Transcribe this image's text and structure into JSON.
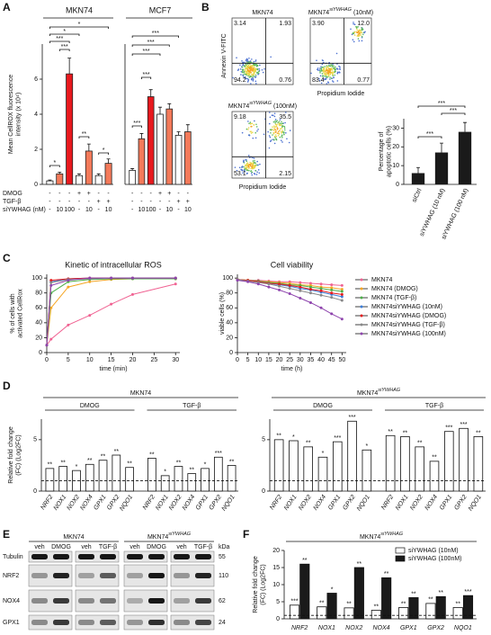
{
  "chart_data": [
    {
      "panel": "A",
      "type": "bar",
      "title": "MKN74",
      "ylabel": [
        "Mean CellROX fluorescence",
        "intensity (x 10⁴)"
      ],
      "ylim": [
        0,
        8
      ],
      "yticks": [
        0,
        2,
        4,
        6
      ],
      "values": [
        0.2,
        0.6,
        6.3,
        0.5,
        1.9,
        0.5,
        1.2
      ],
      "errors": [
        0.05,
        0.1,
        0.9,
        0.1,
        0.4,
        0.1,
        0.25
      ],
      "colors": [
        "#ffffff",
        "#f47a5a",
        "#e8191e",
        "#ffffff",
        "#f47a5a",
        "#ffffff",
        "#f47a5a"
      ],
      "condition_labels": [
        "DMOG",
        "TGF-β",
        "siYWHAG (nM)"
      ],
      "conditions": [
        [
          "-",
          "-",
          "-",
          "+",
          "+",
          "-",
          "-"
        ],
        [
          "-",
          "-",
          "-",
          "-",
          "-",
          "+",
          "+"
        ],
        [
          "-",
          "10",
          "100",
          "-",
          "10",
          "-",
          "10"
        ]
      ],
      "significance": [
        "*",
        "*",
        "***",
        "***",
        "*",
        "**",
        "*"
      ]
    },
    {
      "type": "bar",
      "title": "MCF7",
      "ylim": [
        0,
        8
      ],
      "values": [
        0.8,
        2.6,
        5.0,
        4.0,
        4.3,
        2.8,
        3.0
      ],
      "errors": [
        0.1,
        0.3,
        0.4,
        0.4,
        0.3,
        0.2,
        0.4
      ],
      "colors": [
        "#ffffff",
        "#f47a5a",
        "#e8191e",
        "#ffffff",
        "#f47a5a",
        "#ffffff",
        "#f47a5a"
      ],
      "conditions": [
        [
          "-",
          "-",
          "-",
          "+",
          "+",
          "-",
          "-"
        ],
        [
          "-",
          "-",
          "-",
          "-",
          "-",
          "+",
          "+"
        ],
        [
          "-",
          "10",
          "100",
          "-",
          "10",
          "-",
          "10"
        ]
      ],
      "significance": [
        "***",
        "***",
        "***",
        "***",
        "***"
      ]
    },
    {
      "type": "bar",
      "ylabel": [
        "Percentage of",
        "apoptotic cells (%)"
      ],
      "categories": [
        "siCtrl",
        "siYWHAG (10 nM)",
        "siYWHAG (100 nM)"
      ],
      "values": [
        6,
        17,
        28
      ],
      "errors": [
        3,
        5,
        5
      ],
      "color": "#1a1a1a",
      "ylim": [
        0,
        35
      ],
      "yticks": [
        0,
        10,
        20,
        30
      ],
      "significance": [
        "***",
        "***",
        "***"
      ]
    },
    {
      "panel": "C",
      "type": "line",
      "title": "Kinetic of intracellular ROS",
      "xlabel": "time (min)",
      "ylabel": [
        "% of cells with",
        "activated CellRox"
      ],
      "x": [
        0,
        1,
        5,
        10,
        15,
        20,
        30
      ],
      "xlim": [
        0,
        31
      ],
      "xticks": [
        0,
        5,
        10,
        15,
        20,
        25,
        30
      ],
      "ylim": [
        0,
        105
      ],
      "yticks": [
        0,
        20,
        40,
        60,
        80,
        100
      ],
      "series": [
        {
          "color": "#f06292",
          "values": [
            10,
            18,
            37,
            50,
            65,
            78,
            92
          ]
        },
        {
          "color": "#f5a623",
          "values": [
            10,
            60,
            88,
            95,
            98,
            99,
            99
          ]
        },
        {
          "color": "#4daf4a",
          "values": [
            10,
            80,
            95,
            98,
            99,
            99,
            99
          ]
        },
        {
          "color": "#3b7dd8",
          "values": [
            10,
            95,
            99,
            100,
            100,
            100,
            100
          ]
        },
        {
          "color": "#e41a1c",
          "values": [
            10,
            97,
            99,
            100,
            100,
            100,
            100
          ]
        },
        {
          "color": "#888888",
          "values": [
            10,
            94,
            98,
            99,
            100,
            100,
            100
          ]
        },
        {
          "color": "#8e44ad",
          "values": [
            10,
            90,
            97,
            100,
            100,
            100,
            100
          ]
        }
      ]
    },
    {
      "type": "line",
      "title": "Cell viability",
      "xlabel": "time (h)",
      "ylabel": [
        "viable cells (%)"
      ],
      "x": [
        0,
        5,
        10,
        15,
        20,
        25,
        30,
        35,
        40,
        45,
        50
      ],
      "xlim": [
        0,
        52
      ],
      "xticks": [
        0,
        5,
        10,
        15,
        20,
        25,
        30,
        35,
        40,
        45,
        50
      ],
      "ylim": [
        0,
        105
      ],
      "yticks": [
        0,
        20,
        40,
        60,
        80,
        100
      ],
      "legend": "right",
      "series": [
        {
          "name": "MKN74",
          "color": "#f06292",
          "values": [
            98,
            97,
            97,
            96,
            95,
            95,
            94,
            93,
            92,
            91,
            90
          ]
        },
        {
          "name": "MKN74 (DMOG)",
          "color": "#f5a623",
          "values": [
            98,
            97,
            96,
            95,
            94,
            93,
            91,
            90,
            88,
            87,
            85
          ]
        },
        {
          "name": "MKN74 (TGF-β)",
          "color": "#4daf4a",
          "values": [
            98,
            97,
            96,
            94,
            93,
            91,
            90,
            88,
            86,
            84,
            82
          ]
        },
        {
          "name": "MKN74siYWHAG (10nM)",
          "color": "#3b7dd8",
          "values": [
            98,
            96,
            95,
            93,
            91,
            89,
            86,
            84,
            81,
            78,
            75
          ]
        },
        {
          "name": "MKN74siYWHAG (DMOG)",
          "color": "#e41a1c",
          "values": [
            98,
            97,
            95,
            93,
            92,
            90,
            88,
            85,
            83,
            80,
            78
          ]
        },
        {
          "name": "MKN74siYWHAG (TGF-β)",
          "color": "#888888",
          "values": [
            98,
            96,
            94,
            92,
            89,
            86,
            83,
            80,
            77,
            74,
            70
          ]
        },
        {
          "name": "MKN74siYWHAG (100nM)",
          "color": "#8e44ad",
          "values": [
            97,
            95,
            92,
            88,
            84,
            79,
            73,
            67,
            60,
            52,
            45
          ]
        }
      ]
    },
    {
      "panel": "D",
      "type": "grouped_bar",
      "title": "MKN74",
      "ylabel": [
        "Relative fold change",
        "(FC) (Log2FC)"
      ],
      "categories": [
        "NRF2",
        "NOX1",
        "NOX2",
        "NOX4",
        "GPX1",
        "GPX2",
        "NQO1"
      ],
      "color": "#ffffff",
      "ylim": [
        0,
        7
      ],
      "yticks": [
        0,
        5
      ],
      "threshold": 1,
      "groups": [
        {
          "name": "DMOG",
          "values": [
            2.2,
            2.4,
            2.0,
            2.6,
            3.0,
            3.5,
            2.3
          ],
          "significance": [
            "**",
            "**",
            "*",
            "**",
            "**",
            "**",
            "**"
          ]
        },
        {
          "name": "TGF-β",
          "values": [
            3.2,
            1.5,
            2.4,
            1.7,
            2.2,
            3.3,
            2.5
          ],
          "significance": [
            "**",
            "*",
            "**",
            "**",
            "*",
            "***",
            "**"
          ]
        }
      ]
    },
    {
      "type": "grouped_bar",
      "title": "MKN74",
      "title_sup": "siYWHAG",
      "categories": [
        "NRF2",
        "NOX1",
        "NOX2",
        "NOX4",
        "GPX1",
        "GPX2",
        "NQO1"
      ],
      "color": "#ffffff",
      "ylim": [
        0,
        7
      ],
      "yticks": [
        0,
        5
      ],
      "threshold": 1,
      "groups": [
        {
          "name": "DMOG",
          "values": [
            5.0,
            4.9,
            4.3,
            3.3,
            4.8,
            6.8,
            4.0
          ],
          "significance": [
            "**",
            "*",
            "**",
            "*",
            "***",
            "***",
            "*"
          ]
        },
        {
          "name": "TGF-β",
          "values": [
            5.4,
            5.3,
            4.3,
            2.9,
            5.8,
            6.1,
            5.3
          ],
          "significance": [
            "**",
            "**",
            "**",
            "**",
            "***",
            "***",
            "**"
          ]
        }
      ]
    },
    {
      "panel": "F",
      "type": "bar",
      "title": "MKN74",
      "title_sup": "siYWHAG",
      "ylabel": [
        "Relative fold change",
        "(FC) (Log2FC)"
      ],
      "categories": [
        "NRF2",
        "NOX1",
        "NOX2",
        "NOX4",
        "GPX1",
        "GPX2",
        "NQO1"
      ],
      "ylim": [
        0,
        20
      ],
      "yticks": [
        0,
        5,
        10,
        15,
        20
      ],
      "threshold": 1,
      "legend": "upper right",
      "series": [
        {
          "name": "siYWHAG (10nM)",
          "color": "#ffffff",
          "values": [
            4.0,
            3.5,
            3.2,
            2.5,
            3.3,
            4.5,
            3.3
          ],
          "significance": [
            "***",
            "**",
            "**",
            "**",
            "**",
            "**",
            "**"
          ]
        },
        {
          "name": "siYWHAG (100nM)",
          "color": "#1a1a1a",
          "values": [
            16,
            7.5,
            15,
            12,
            6.2,
            6.5,
            6.8
          ],
          "significance": [
            "**",
            "*",
            "**",
            "**",
            "**",
            "**",
            "***"
          ]
        }
      ]
    }
  ],
  "flow_cytometry": {
    "panel": "B",
    "xlabel": "Propidium Iodide",
    "ylabel": "Annexin V-FITC",
    "plots": [
      {
        "title": "MKN74",
        "quadrants": [
          "3.14",
          "1.93",
          "94.2",
          "0.76"
        ]
      },
      {
        "title": "MKN74",
        "title_sup": "siYWHAG",
        "title_suffix": "(10nM)",
        "quadrants": [
          "3.90",
          "12.0",
          "83.4",
          "0.77"
        ]
      },
      {
        "title": "MKN74",
        "title_sup": "siYWHAG",
        "title_suffix": "(100nM)",
        "quadrants": [
          "9.18",
          "35.5",
          "53.1",
          "2.15"
        ]
      }
    ]
  },
  "western_blot": {
    "panel": "E",
    "groups": [
      {
        "title": "MKN74",
        "lanes": [
          "veh",
          "DMOG",
          "veh",
          "TGF-β"
        ]
      },
      {
        "title": "MKN74",
        "title_sup": "siYWHAG",
        "lanes": [
          "veh",
          "DMOG",
          "veh",
          "TGF-β"
        ]
      }
    ],
    "unit": "kDa",
    "proteins": [
      {
        "name": "Tubulin",
        "kda": 55
      },
      {
        "name": "NRF2",
        "kda": 110
      },
      {
        "name": "NOX4",
        "kda": 62
      },
      {
        "name": "GPX1",
        "kda": 24
      }
    ]
  }
}
